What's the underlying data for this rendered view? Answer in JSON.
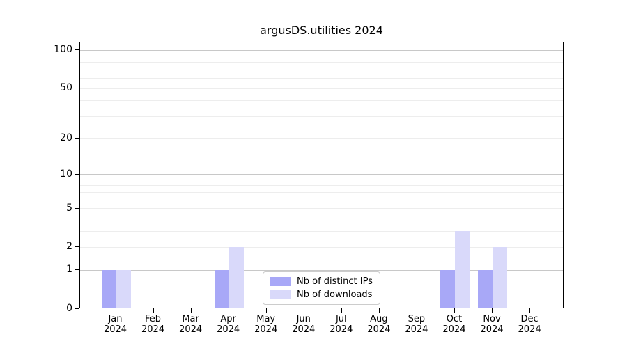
{
  "colors": {
    "background": "#ffffff",
    "axis": "#000000",
    "grid_minor": "#ededed",
    "grid_major": "#c8c8c8",
    "legend_border": "#cccccc",
    "series_distinct_ips": "#a8a8f7",
    "series_downloads": "#d9d9fa"
  },
  "chart_data": {
    "type": "bar",
    "title": "argusDS.utilities 2024",
    "xlabel": "",
    "ylabel": "",
    "year": "2024",
    "categories": [
      "Jan",
      "Feb",
      "Mar",
      "Apr",
      "May",
      "Jun",
      "Jul",
      "Aug",
      "Sep",
      "Oct",
      "Nov",
      "Dec"
    ],
    "series": [
      {
        "name": "Nb of distinct IPs",
        "color": "#a8a8f7",
        "values": [
          1,
          0,
          0,
          1,
          0,
          0,
          0,
          0,
          0,
          1,
          1,
          0
        ]
      },
      {
        "name": "Nb of downloads",
        "color": "#d9d9fa",
        "values": [
          1,
          0,
          0,
          2,
          0,
          0,
          0,
          0,
          0,
          3,
          2,
          0
        ]
      }
    ],
    "y_axis": {
      "scale": "log1p",
      "ylim": [
        0,
        115
      ],
      "ticks": [
        0,
        1,
        2,
        5,
        10,
        20,
        50,
        100
      ],
      "major_gridlines": [
        1,
        10,
        100
      ],
      "minor_gridlines": [
        2,
        3,
        4,
        5,
        6,
        7,
        8,
        9,
        20,
        30,
        40,
        50,
        60,
        70,
        80,
        90
      ],
      "grid": "on"
    },
    "legend": {
      "position": "lower center",
      "entries": [
        "Nb of distinct IPs",
        "Nb of downloads"
      ]
    }
  }
}
